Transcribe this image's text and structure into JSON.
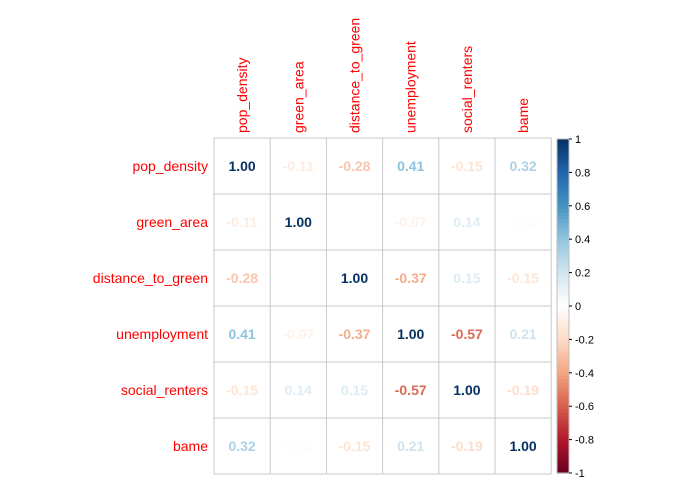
{
  "chart_data": {
    "type": "heatmap",
    "variables": [
      "pop_density",
      "green_area",
      "distance_to_green",
      "unemployment",
      "social_renters",
      "bame"
    ],
    "matrix": [
      [
        1.0,
        -0.11,
        -0.28,
        0.41,
        -0.15,
        0.32
      ],
      [
        -0.11,
        1.0,
        null,
        -0.07,
        0.14,
        -0.02
      ],
      [
        -0.28,
        null,
        1.0,
        -0.37,
        0.15,
        -0.15
      ],
      [
        0.41,
        -0.07,
        -0.37,
        1.0,
        -0.57,
        0.21
      ],
      [
        -0.15,
        0.14,
        0.15,
        -0.57,
        1.0,
        -0.19
      ],
      [
        0.32,
        -0.02,
        -0.15,
        0.21,
        -0.19,
        1.0
      ]
    ],
    "labels": [
      [
        "1.00",
        "-0.11",
        "-0.28",
        "0.41",
        "-0.15",
        "0.32"
      ],
      [
        "-0.11",
        "1.00",
        "",
        "-0.07",
        "0.14",
        "-0.02"
      ],
      [
        "-0.28",
        "",
        "1.00",
        "-0.37",
        "0.15",
        "-0.15"
      ],
      [
        "0.41",
        "-0.07",
        "-0.37",
        "1.00",
        "-0.57",
        "0.21"
      ],
      [
        "-0.15",
        "0.14",
        "0.15",
        "-0.57",
        "1.00",
        "-0.19"
      ],
      [
        "0.32",
        "-0.02",
        "-0.15",
        "0.21",
        "-0.19",
        "1.00"
      ]
    ],
    "color_range": [
      -1,
      1
    ],
    "colorbar_ticks": [
      "1",
      "0.8",
      "0.6",
      "0.4",
      "0.2",
      "0",
      "-0.2",
      "-0.4",
      "-0.6",
      "-0.8",
      "-1"
    ],
    "colorbar_tick_values": [
      1,
      0.8,
      0.6,
      0.4,
      0.2,
      0,
      -0.2,
      -0.4,
      -0.6,
      -0.8,
      -1
    ],
    "label_color": "#ff0000",
    "grid_color": "#c8c8c8",
    "palette": [
      "#67001f",
      "#b2182b",
      "#d6604d",
      "#f4a582",
      "#fddbc7",
      "#ffffff",
      "#d1e5f0",
      "#92c5de",
      "#4393c3",
      "#2166ac",
      "#053061"
    ]
  }
}
